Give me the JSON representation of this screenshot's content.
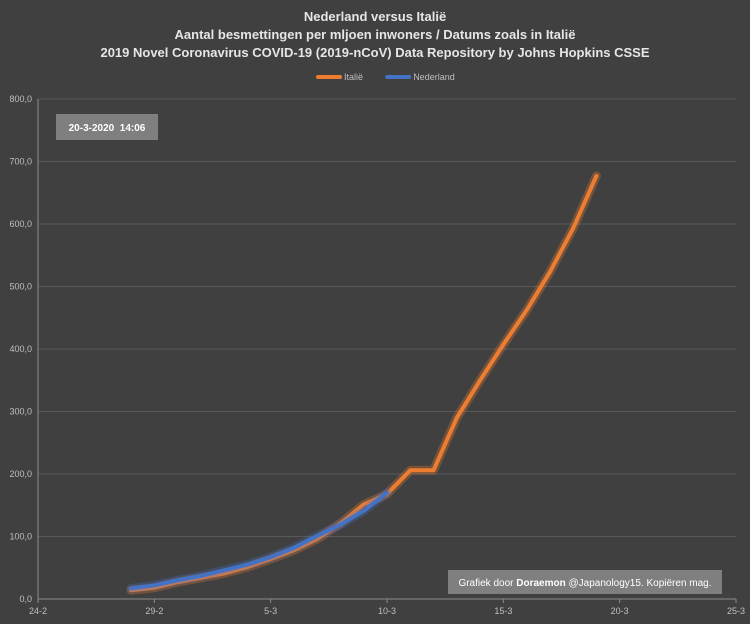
{
  "chart_data": {
    "type": "line",
    "title_lines": [
      "Nederland versus Italië",
      "Aantal besmettingen per mljoen inwoners / Datums zoals in Italië",
      "2019 Novel Coronavirus COVID-19 (2019-nCoV) Data Repository by Johns Hopkins CSSE"
    ],
    "xlabel": "",
    "ylabel": "",
    "x_ticks": [
      "24-2",
      "29-2",
      "5-3",
      "10-3",
      "15-3",
      "20-3",
      "25-3"
    ],
    "y_ticks": [
      "0,0",
      "100,0",
      "200,0",
      "300,0",
      "400,0",
      "500,0",
      "600,0",
      "700,0",
      "800,0"
    ],
    "xlim": [
      "2020-02-24",
      "2020-03-25"
    ],
    "ylim": [
      0,
      800
    ],
    "grid": "horizontal",
    "legend_position": "top",
    "series": [
      {
        "name": "Italië",
        "color": "#ed7d31",
        "points": [
          [
            "2020-02-28",
            14
          ],
          [
            "2020-02-29",
            18
          ],
          [
            "2020-03-01",
            27
          ],
          [
            "2020-03-02",
            34
          ],
          [
            "2020-03-03",
            41
          ],
          [
            "2020-03-04",
            51
          ],
          [
            "2020-03-05",
            64
          ],
          [
            "2020-03-06",
            78
          ],
          [
            "2020-03-07",
            96
          ],
          [
            "2020-03-08",
            121
          ],
          [
            "2020-03-09",
            151
          ],
          [
            "2020-03-10",
            168
          ],
          [
            "2020-03-11",
            206
          ],
          [
            "2020-03-12",
            206
          ],
          [
            "2020-03-13",
            290
          ],
          [
            "2020-03-14",
            350
          ],
          [
            "2020-03-15",
            407
          ],
          [
            "2020-03-16",
            462
          ],
          [
            "2020-03-17",
            523
          ],
          [
            "2020-03-18",
            593
          ],
          [
            "2020-03-19",
            677
          ]
        ]
      },
      {
        "name": "Nederland",
        "color": "#4472c4",
        "points": [
          [
            "2020-02-28",
            17
          ],
          [
            "2020-02-29",
            22
          ],
          [
            "2020-03-01",
            30
          ],
          [
            "2020-03-02",
            37
          ],
          [
            "2020-03-03",
            46
          ],
          [
            "2020-03-04",
            55
          ],
          [
            "2020-03-05",
            67
          ],
          [
            "2020-03-06",
            82
          ],
          [
            "2020-03-07",
            101
          ],
          [
            "2020-03-08",
            119
          ],
          [
            "2020-03-09",
            141
          ],
          [
            "2020-03-10",
            170
          ]
        ]
      }
    ]
  },
  "stamp": "20-3-2020  14:06",
  "credit": {
    "prefix": "Grafiek door ",
    "author": "Doraemon",
    "suffix": " @Japanology15. Kopiëren mag."
  },
  "colors": {
    "background": "#404040",
    "grid": "#595959",
    "stamp_bg": "#7f7f7f",
    "credit_bg": "#7f7f7f"
  }
}
